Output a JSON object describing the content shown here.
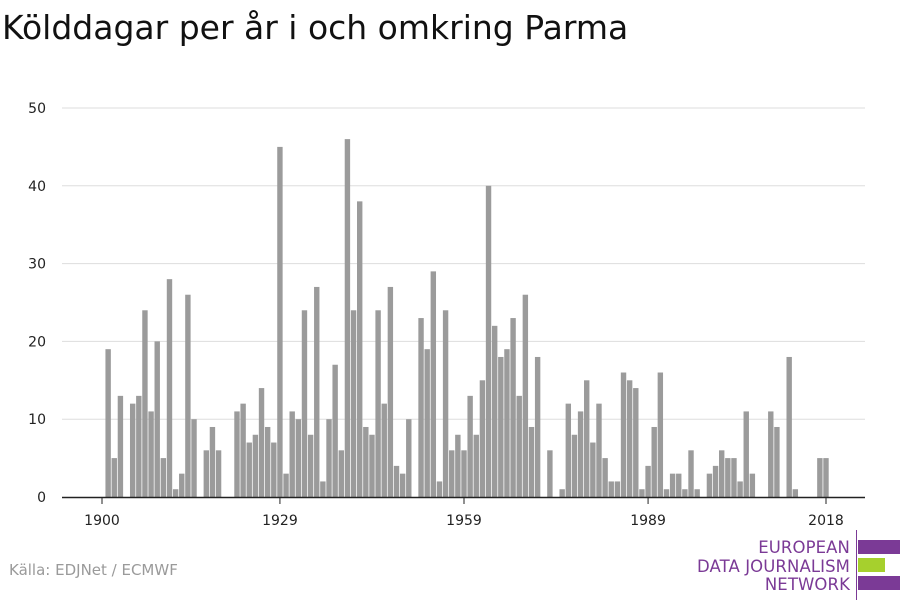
{
  "title": "Kölddagar per år i och omkring Parma",
  "source": "Källa: EDJNet / ECMWF",
  "logo": {
    "lines": [
      "EUROPEAN",
      "DATA JOURNALISM",
      "NETWORK"
    ],
    "colors": [
      "#7b3a96",
      "#a6d02d",
      "#7b3a96"
    ]
  },
  "colors": {
    "bar": "#9b9b9b",
    "grid": "#dddddd",
    "axis": "#222222",
    "accent": "#7b3a96"
  },
  "chart_data": {
    "type": "bar",
    "title": "Kölddagar per år i och omkring Parma",
    "xlabel": "",
    "ylabel": "",
    "ylim": [
      0,
      50
    ],
    "yticks": [
      0,
      10,
      20,
      30,
      40,
      50
    ],
    "xticks": [
      1900,
      1929,
      1959,
      1989,
      2018
    ],
    "grid": true,
    "x": [
      1901,
      1902,
      1903,
      1904,
      1905,
      1906,
      1907,
      1908,
      1909,
      1910,
      1911,
      1912,
      1913,
      1914,
      1915,
      1916,
      1917,
      1918,
      1919,
      1920,
      1921,
      1922,
      1923,
      1924,
      1925,
      1926,
      1927,
      1928,
      1929,
      1930,
      1931,
      1932,
      1933,
      1934,
      1935,
      1936,
      1937,
      1938,
      1939,
      1940,
      1941,
      1942,
      1943,
      1944,
      1945,
      1946,
      1947,
      1948,
      1949,
      1950,
      1951,
      1952,
      1953,
      1954,
      1955,
      1956,
      1957,
      1958,
      1959,
      1960,
      1961,
      1962,
      1963,
      1964,
      1965,
      1966,
      1967,
      1968,
      1969,
      1970,
      1971,
      1972,
      1973,
      1974,
      1975,
      1976,
      1977,
      1978,
      1979,
      1980,
      1981,
      1982,
      1983,
      1984,
      1985,
      1986,
      1987,
      1988,
      1989,
      1990,
      1991,
      1992,
      1993,
      1994,
      1995,
      1996,
      1997,
      1998,
      1999,
      2000,
      2001,
      2002,
      2003,
      2004,
      2005,
      2006,
      2007,
      2008,
      2009,
      2010,
      2011,
      2012,
      2013,
      2014,
      2015,
      2016,
      2017,
      2018
    ],
    "values": [
      19,
      5,
      13,
      0,
      12,
      13,
      24,
      11,
      20,
      5,
      28,
      1,
      3,
      26,
      10,
      0,
      6,
      9,
      6,
      0,
      0,
      11,
      12,
      7,
      8,
      14,
      9,
      7,
      45,
      3,
      11,
      10,
      24,
      8,
      27,
      2,
      10,
      17,
      6,
      46,
      24,
      38,
      9,
      8,
      24,
      12,
      27,
      4,
      3,
      10,
      0,
      23,
      19,
      29,
      2,
      24,
      6,
      8,
      6,
      13,
      8,
      15,
      40,
      22,
      18,
      19,
      23,
      13,
      26,
      9,
      18,
      0,
      6,
      0,
      1,
      12,
      8,
      11,
      15,
      7,
      12,
      5,
      2,
      2,
      16,
      15,
      14,
      1,
      4,
      9,
      16,
      1,
      3,
      3,
      1,
      6,
      1,
      0,
      3,
      4,
      6,
      5,
      5,
      2,
      11,
      3,
      0,
      0,
      11,
      9,
      0,
      18,
      1,
      0,
      0,
      0,
      5,
      5
    ]
  }
}
